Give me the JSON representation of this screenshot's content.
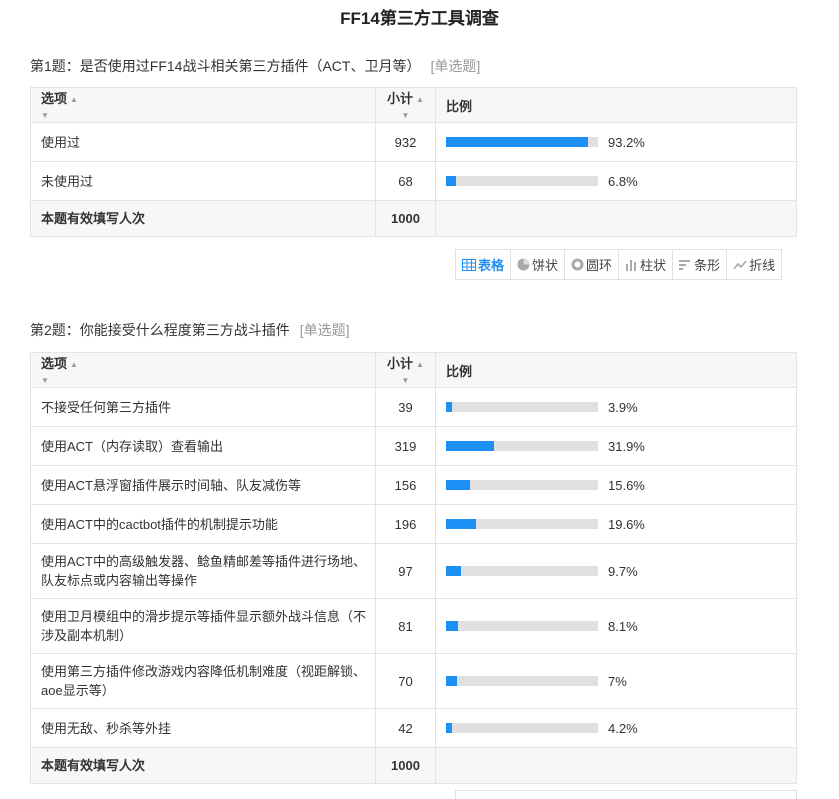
{
  "page": {
    "title": "FF14第三方工具调查"
  },
  "headers": {
    "option": "选项",
    "count": "小计",
    "percent": "比例"
  },
  "question1": {
    "title": "第1题：是否使用过FF14战斗相关第三方插件（ACT、卫月等）",
    "type": "[单选题]",
    "rows": [
      {
        "label": "使用过",
        "count": "932",
        "pct_text": "93.2%",
        "pct": 93.2
      },
      {
        "label": "未使用过",
        "count": "68",
        "pct_text": "6.8%",
        "pct": 6.8
      }
    ],
    "total_label": "本题有效填写人次",
    "total_count": "1000"
  },
  "view_toolbar": {
    "buttons": [
      {
        "label": "表格",
        "icon": "table-icon",
        "active": true
      },
      {
        "label": "饼状",
        "icon": "pie-icon",
        "active": false
      },
      {
        "label": "圆环",
        "icon": "ring-icon",
        "active": false
      },
      {
        "label": "柱状",
        "icon": "bar-icon",
        "active": false
      },
      {
        "label": "条形",
        "icon": "hbar-icon",
        "active": false
      },
      {
        "label": "折线",
        "icon": "line-icon",
        "active": false
      }
    ],
    "accent_color": "#1e8ff5"
  },
  "question2": {
    "title": "第2题：你能接受什么程度第三方战斗插件",
    "type": "[单选题]",
    "rows": [
      {
        "label": "不接受任何第三方插件",
        "count": "39",
        "pct_text": "3.9%",
        "pct": 3.9
      },
      {
        "label": "使用ACT（内存读取）查看输出",
        "count": "319",
        "pct_text": "31.9%",
        "pct": 31.9
      },
      {
        "label": "使用ACT悬浮窗插件展示时间轴、队友减伤等",
        "count": "156",
        "pct_text": "15.6%",
        "pct": 15.6
      },
      {
        "label": "使用ACT中的cactbot插件的机制提示功能",
        "count": "196",
        "pct_text": "19.6%",
        "pct": 19.6
      },
      {
        "label": "使用ACT中的高级触发器、鲶鱼精邮差等插件进行场地、队友标点或内容输出等操作",
        "count": "97",
        "pct_text": "9.7%",
        "pct": 9.7
      },
      {
        "label": "使用卫月模组中的滑步提示等插件显示额外战斗信息（不涉及副本机制）",
        "count": "81",
        "pct_text": "8.1%",
        "pct": 8.1
      },
      {
        "label": "使用第三方插件修改游戏内容降低机制难度（视距解锁、aoe显示等）",
        "count": "70",
        "pct_text": "7%",
        "pct": 7
      },
      {
        "label": "使用无敌、秒杀等外挂",
        "count": "42",
        "pct_text": "4.2%",
        "pct": 4.2
      }
    ],
    "total_label": "本题有效填写人次",
    "total_count": "1000"
  }
}
